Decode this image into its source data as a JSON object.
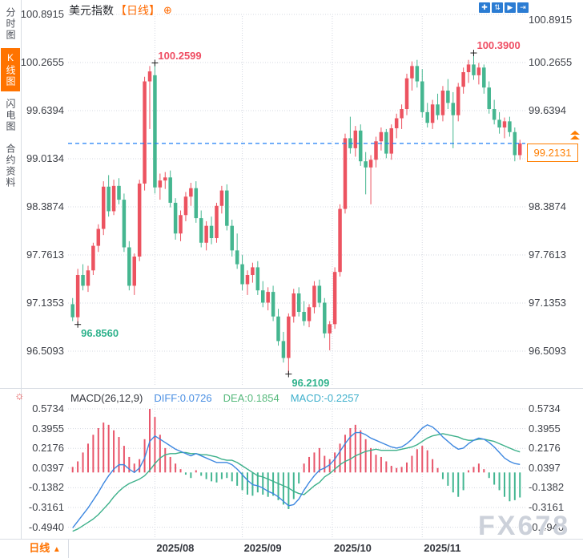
{
  "app": {
    "watermark": "FX678"
  },
  "sidebar": {
    "items": [
      {
        "label": "分时图",
        "active": false
      },
      {
        "label": "K线图",
        "active": true
      },
      {
        "label": "闪电图",
        "active": false
      },
      {
        "label": "合约资料",
        "active": false
      }
    ]
  },
  "header": {
    "title": "美元指数",
    "period_tag": "【日线】",
    "add_icon": "⊕"
  },
  "toolbar": {
    "icons": [
      {
        "name": "move-icon",
        "glyph": "✚"
      },
      {
        "name": "axis-scale-icon",
        "glyph": "⇅"
      },
      {
        "name": "auto-fit-icon",
        "glyph": "▶"
      },
      {
        "name": "export-icon",
        "glyph": "⇥"
      }
    ]
  },
  "price_axis": {
    "labels": [
      "100.8915",
      "100.2655",
      "99.6394",
      "99.0134",
      "98.3874",
      "97.7613",
      "97.1353",
      "96.5093"
    ]
  },
  "macd_axis": {
    "labels": [
      "0.5734",
      "0.3955",
      "0.2176",
      "0.0397",
      "-0.1382",
      "-0.3161",
      "-0.4940"
    ]
  },
  "current_price": {
    "value": "99.2131",
    "arrow": "double-up-triangle"
  },
  "macd_header": {
    "name": "MACD(26,12,9)",
    "diff_label": "DIFF:0.0726",
    "dea_label": "DEA:0.1854",
    "macd_label": "MACD:-0.2257"
  },
  "footer": {
    "period_label": "日线",
    "arrow": "▲"
  },
  "colors": {
    "up": "#ec5360",
    "down": "#45b690",
    "hist_up": "#e8556a",
    "hist_down": "#43b692",
    "diff_line": "#3d87e0",
    "dea_line": "#3cb08a",
    "accent_orange": "#ff7300",
    "dashed_price_line": "#1f7ef5",
    "grid": "#d4d8e1",
    "toolbar_blue": "#2b7cd3",
    "anno_high": "#ef4e63",
    "anno_low": "#2fb28c"
  },
  "chart_data": {
    "type": "candlestick+macd",
    "title": "美元指数 日线 (US Dollar Index, daily)",
    "price_axis_values": [
      100.8915,
      100.2655,
      99.6394,
      99.0134,
      98.3874,
      97.7613,
      97.1353,
      96.5093
    ],
    "macd_axis_values": [
      0.5734,
      0.3955,
      0.2176,
      0.0397,
      -0.1382,
      -0.3161,
      -0.494
    ],
    "current_price": 99.2131,
    "months": [
      {
        "label": "2025/08",
        "i": 17
      },
      {
        "label": "2025/09",
        "i": 34
      },
      {
        "label": "2025/10",
        "i": 51.5
      },
      {
        "label": "2025/11",
        "i": 69
      }
    ],
    "markers": [
      {
        "i": 2,
        "price": 96.856,
        "label": "96.8560",
        "kind": "low"
      },
      {
        "i": 17,
        "price": 100.2599,
        "label": "100.2599",
        "kind": "high"
      },
      {
        "i": 43,
        "price": 96.2109,
        "label": "96.2109",
        "kind": "low"
      },
      {
        "i": 79,
        "price": 100.39,
        "label": "100.3900",
        "kind": "high"
      }
    ],
    "candles_ohlc": [
      [
        97.12,
        97.2,
        96.9,
        96.95
      ],
      [
        96.95,
        97.58,
        96.856,
        97.5
      ],
      [
        97.5,
        97.64,
        97.3,
        97.36
      ],
      [
        97.36,
        97.62,
        97.28,
        97.56
      ],
      [
        97.56,
        97.92,
        97.5,
        97.88
      ],
      [
        97.88,
        98.16,
        97.8,
        98.1
      ],
      [
        98.1,
        98.72,
        98.02,
        98.65
      ],
      [
        98.65,
        98.8,
        98.26,
        98.33
      ],
      [
        98.33,
        98.74,
        98.28,
        98.66
      ],
      [
        98.66,
        98.76,
        98.42,
        98.48
      ],
      [
        98.48,
        98.56,
        97.8,
        97.86
      ],
      [
        97.86,
        97.94,
        97.3,
        97.36
      ],
      [
        97.36,
        97.78,
        97.24,
        97.74
      ],
      [
        97.74,
        98.74,
        97.68,
        98.69
      ],
      [
        98.69,
        100.08,
        98.6,
        100.02
      ],
      [
        100.02,
        100.22,
        99.4,
        100.15
      ],
      [
        100.1,
        100.2599,
        98.56,
        98.64
      ],
      [
        98.64,
        98.82,
        98.48,
        98.73
      ],
      [
        98.73,
        98.84,
        98.62,
        98.77
      ],
      [
        98.77,
        98.86,
        98.38,
        98.44
      ],
      [
        98.44,
        98.5,
        97.96,
        98.04
      ],
      [
        98.04,
        98.34,
        97.94,
        98.28
      ],
      [
        98.28,
        98.58,
        98.2,
        98.52
      ],
      [
        98.52,
        98.7,
        98.4,
        98.63
      ],
      [
        98.63,
        98.72,
        98.18,
        98.24
      ],
      [
        98.24,
        98.34,
        97.86,
        97.92
      ],
      [
        97.92,
        98.2,
        97.82,
        98.14
      ],
      [
        98.14,
        98.26,
        97.9,
        97.98
      ],
      [
        97.98,
        98.44,
        97.92,
        98.4
      ],
      [
        98.4,
        98.66,
        98.3,
        98.6
      ],
      [
        98.6,
        98.68,
        98.08,
        98.14
      ],
      [
        98.14,
        98.22,
        97.74,
        97.82
      ],
      [
        97.82,
        98.04,
        97.58,
        97.64
      ],
      [
        97.64,
        97.76,
        97.3,
        97.38
      ],
      [
        97.38,
        97.56,
        97.24,
        97.5
      ],
      [
        97.5,
        97.66,
        97.4,
        97.6
      ],
      [
        97.6,
        97.68,
        97.24,
        97.3
      ],
      [
        97.3,
        97.42,
        97.08,
        97.14
      ],
      [
        97.14,
        97.34,
        97.04,
        97.28
      ],
      [
        97.28,
        97.36,
        96.9,
        96.96
      ],
      [
        96.96,
        97.06,
        96.58,
        96.64
      ],
      [
        96.64,
        96.76,
        96.36,
        96.42
      ],
      [
        96.42,
        97.0,
        96.2109,
        96.96
      ],
      [
        96.96,
        97.32,
        96.88,
        97.26
      ],
      [
        97.26,
        97.34,
        96.96,
        97.02
      ],
      [
        97.02,
        97.16,
        96.84,
        96.9
      ],
      [
        96.9,
        97.12,
        96.82,
        97.08
      ],
      [
        97.08,
        97.42,
        97.0,
        97.36
      ],
      [
        97.36,
        97.44,
        97.08,
        97.14
      ],
      [
        97.14,
        97.2,
        96.68,
        96.74
      ],
      [
        96.74,
        96.9,
        96.52,
        96.86
      ],
      [
        96.86,
        97.6,
        96.8,
        97.54
      ],
      [
        97.54,
        98.42,
        97.48,
        98.36
      ],
      [
        98.36,
        99.34,
        98.3,
        99.28
      ],
      [
        99.28,
        99.56,
        99.08,
        99.15
      ],
      [
        99.15,
        99.44,
        99.04,
        99.38
      ],
      [
        99.38,
        99.46,
        98.92,
        98.98
      ],
      [
        98.98,
        99.1,
        98.55,
        98.9
      ],
      [
        98.9,
        99.06,
        98.42,
        99.0
      ],
      [
        99.0,
        99.3,
        98.9,
        99.24
      ],
      [
        99.24,
        99.42,
        99.12,
        99.36
      ],
      [
        99.36,
        99.4,
        99.02,
        99.08
      ],
      [
        99.08,
        99.46,
        99.0,
        99.41
      ],
      [
        99.41,
        99.6,
        99.28,
        99.54
      ],
      [
        99.54,
        99.72,
        99.4,
        99.66
      ],
      [
        99.66,
        100.12,
        99.58,
        100.06
      ],
      [
        100.06,
        100.28,
        99.9,
        100.22
      ],
      [
        100.22,
        100.3,
        99.94,
        100.02
      ],
      [
        100.02,
        100.18,
        99.55,
        99.62
      ],
      [
        99.62,
        99.74,
        99.42,
        99.48
      ],
      [
        99.48,
        99.78,
        99.4,
        99.72
      ],
      [
        99.72,
        99.86,
        99.52,
        99.58
      ],
      [
        99.58,
        99.96,
        99.5,
        99.9
      ],
      [
        99.9,
        100.05,
        99.66,
        99.74
      ],
      [
        99.74,
        99.88,
        99.15,
        99.58
      ],
      [
        99.58,
        100.0,
        99.5,
        99.95
      ],
      [
        99.95,
        100.2,
        99.86,
        100.14
      ],
      [
        100.14,
        100.3,
        100.0,
        100.24
      ],
      [
        100.24,
        100.39,
        100.04,
        100.1
      ],
      [
        100.1,
        100.26,
        99.98,
        100.2
      ],
      [
        100.2,
        100.24,
        99.86,
        99.94
      ],
      [
        99.94,
        100.02,
        99.6,
        99.66
      ],
      [
        99.66,
        99.78,
        99.46,
        99.52
      ],
      [
        99.52,
        99.62,
        99.34,
        99.42
      ],
      [
        99.42,
        99.55,
        99.28,
        99.5
      ],
      [
        99.5,
        99.56,
        99.3,
        99.36
      ],
      [
        99.36,
        99.42,
        98.98,
        99.06
      ],
      [
        99.06,
        99.26,
        99.0,
        99.2131
      ]
    ],
    "macd": {
      "diff": [
        -0.5,
        -0.44,
        -0.38,
        -0.32,
        -0.25,
        -0.18,
        -0.1,
        -0.03,
        0.03,
        0.07,
        0.07,
        0.03,
        0.0,
        0.04,
        0.13,
        0.28,
        0.33,
        0.3,
        0.27,
        0.24,
        0.21,
        0.19,
        0.17,
        0.15,
        0.17,
        0.15,
        0.13,
        0.11,
        0.09,
        0.09,
        0.09,
        0.07,
        0.03,
        -0.02,
        -0.07,
        -0.11,
        -0.12,
        -0.14,
        -0.17,
        -0.19,
        -0.22,
        -0.26,
        -0.3,
        -0.29,
        -0.24,
        -0.16,
        -0.09,
        -0.03,
        0.02,
        0.04,
        0.07,
        0.12,
        0.19,
        0.26,
        0.32,
        0.36,
        0.36,
        0.34,
        0.31,
        0.29,
        0.27,
        0.25,
        0.23,
        0.22,
        0.23,
        0.26,
        0.3,
        0.35,
        0.4,
        0.43,
        0.41,
        0.37,
        0.32,
        0.28,
        0.24,
        0.21,
        0.22,
        0.26,
        0.29,
        0.31,
        0.3,
        0.27,
        0.23,
        0.18,
        0.13,
        0.1,
        0.08,
        0.0726
      ],
      "dea": [
        -0.53,
        -0.51,
        -0.48,
        -0.45,
        -0.42,
        -0.38,
        -0.33,
        -0.28,
        -0.22,
        -0.17,
        -0.13,
        -0.1,
        -0.08,
        -0.06,
        -0.03,
        0.02,
        0.08,
        0.13,
        0.16,
        0.17,
        0.17,
        0.18,
        0.18,
        0.17,
        0.17,
        0.16,
        0.16,
        0.15,
        0.14,
        0.12,
        0.11,
        0.11,
        0.09,
        0.06,
        0.03,
        0.0,
        -0.03,
        -0.04,
        -0.06,
        -0.08,
        -0.1,
        -0.12,
        -0.14,
        -0.17,
        -0.19,
        -0.2,
        -0.16,
        -0.12,
        -0.09,
        -0.04,
        -0.01,
        0.03,
        0.07,
        0.1,
        0.12,
        0.15,
        0.17,
        0.19,
        0.2,
        0.21,
        0.2,
        0.2,
        0.2,
        0.2,
        0.21,
        0.22,
        0.23,
        0.25,
        0.28,
        0.31,
        0.33,
        0.34,
        0.35,
        0.34,
        0.33,
        0.32,
        0.3,
        0.29,
        0.29,
        0.3,
        0.3,
        0.29,
        0.28,
        0.26,
        0.24,
        0.22,
        0.2,
        0.1854
      ],
      "hist": [
        0.05,
        0.1,
        0.18,
        0.26,
        0.34,
        0.4,
        0.45,
        0.43,
        0.38,
        0.32,
        0.24,
        0.14,
        0.08,
        0.12,
        0.3,
        0.5734,
        0.5,
        0.34,
        0.22,
        0.14,
        0.08,
        0.03,
        -0.02,
        -0.05,
        0.02,
        -0.03,
        -0.06,
        -0.08,
        -0.09,
        -0.06,
        -0.05,
        -0.08,
        -0.12,
        -0.16,
        -0.2,
        -0.21,
        -0.18,
        -0.2,
        -0.22,
        -0.21,
        -0.25,
        -0.29,
        -0.33,
        -0.24,
        -0.1,
        0.08,
        0.14,
        0.18,
        0.22,
        0.15,
        0.12,
        0.18,
        0.26,
        0.34,
        0.4,
        0.43,
        0.38,
        0.3,
        0.22,
        0.16,
        0.14,
        0.1,
        0.06,
        0.04,
        0.05,
        0.09,
        0.15,
        0.21,
        0.24,
        0.2,
        0.12,
        0.04,
        -0.06,
        -0.12,
        -0.18,
        -0.22,
        -0.16,
        0.02,
        0.05,
        0.08,
        0.03,
        -0.05,
        -0.11,
        -0.16,
        -0.22,
        -0.26,
        -0.25,
        -0.2257
      ]
    }
  }
}
